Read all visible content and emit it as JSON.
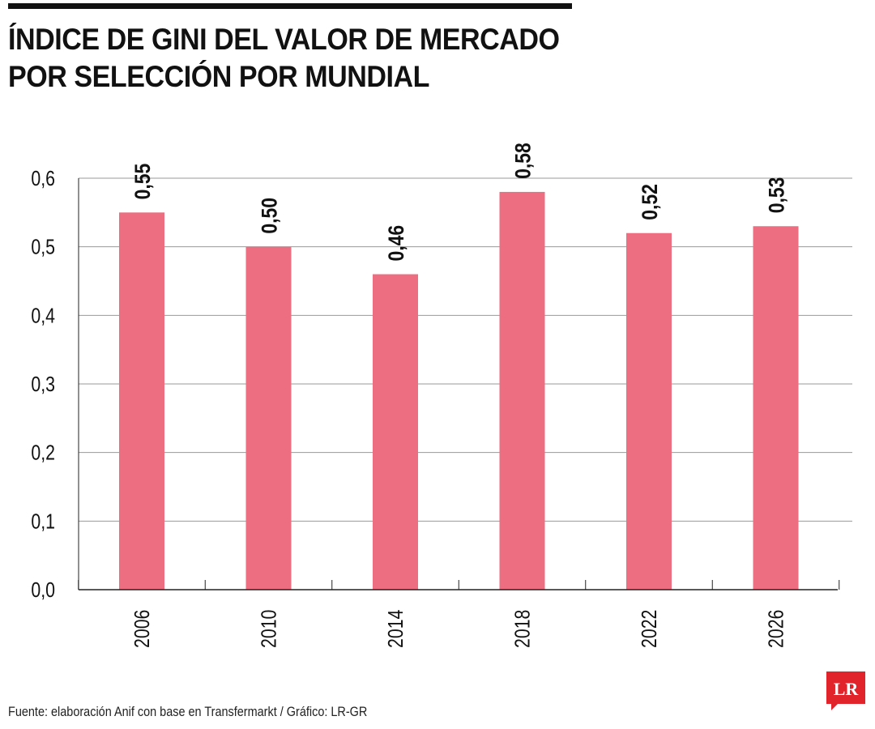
{
  "title_line1": "ÍNDICE DE GINI DEL VALOR DE MERCADO",
  "title_line2": "POR SELECCIÓN POR MUNDIAL",
  "source": "Fuente: elaboración Anif con base en Transfermarkt / Gráfico: LR-GR",
  "logo_text": "LR",
  "colors": {
    "bar": "#ec6e80",
    "grid": "#9a9a9a",
    "axis": "#222222",
    "logo": "#e1242c"
  },
  "chart_data": {
    "type": "bar",
    "categories": [
      "2006",
      "2010",
      "2014",
      "2018",
      "2022",
      "2026"
    ],
    "values": [
      0.55,
      0.5,
      0.46,
      0.58,
      0.52,
      0.53
    ],
    "value_labels": [
      "0,55",
      "0,50",
      "0,46",
      "0,58",
      "0,52",
      "0,53"
    ],
    "yticks": [
      "0,0",
      "0,1",
      "0,2",
      "0,3",
      "0,4",
      "0,5",
      "0,6"
    ],
    "ylim": [
      0,
      0.6
    ],
    "grid": true,
    "legend": false
  }
}
